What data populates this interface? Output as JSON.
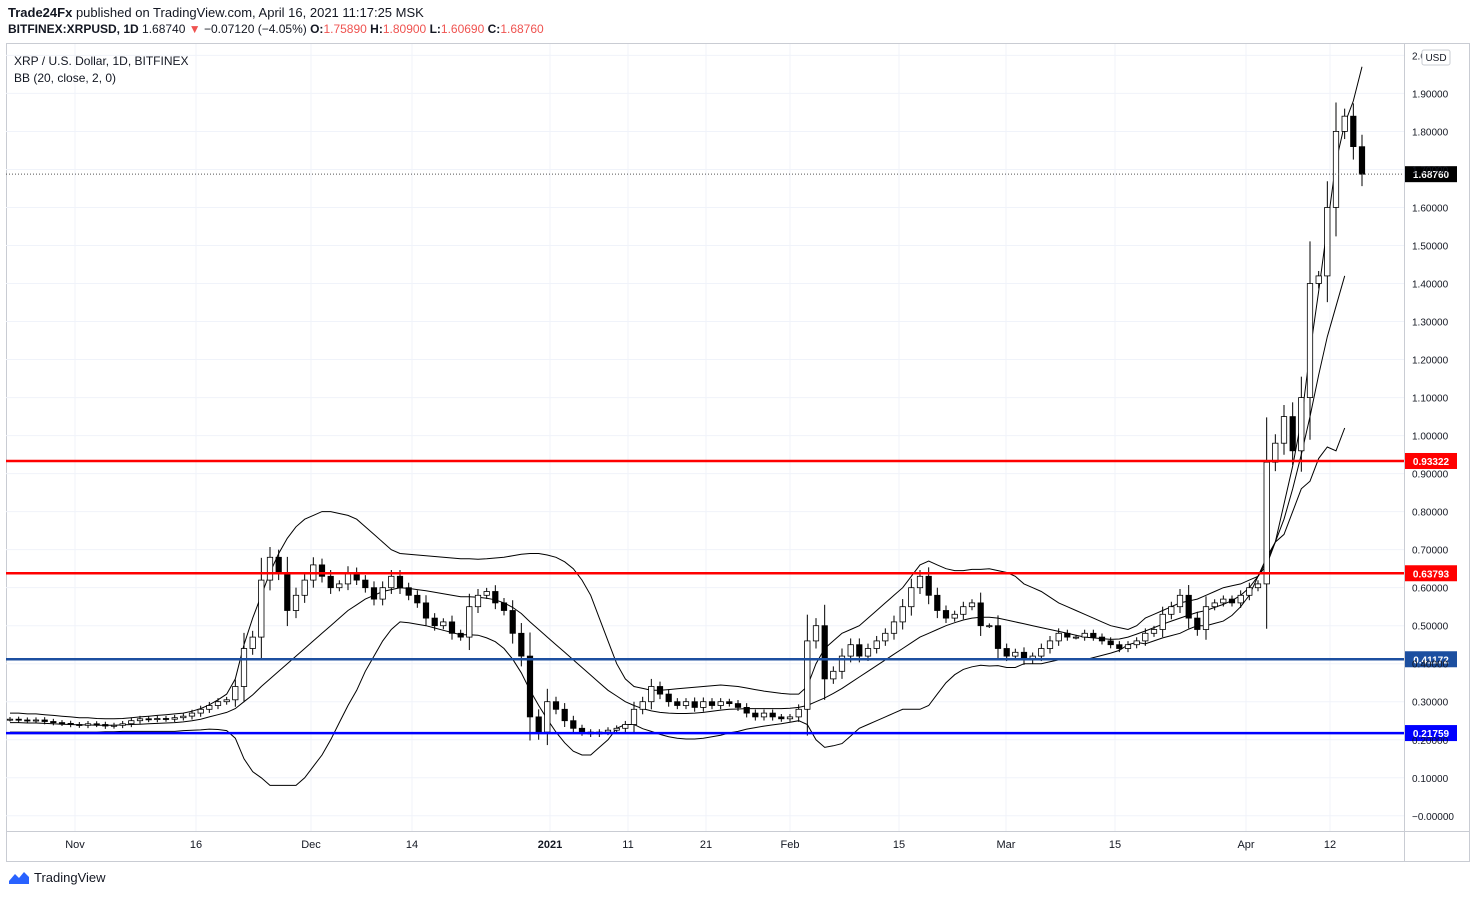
{
  "header": {
    "author": "Trade24Fx",
    "published": "published on TradingView.com, April 16, 2021 11:17:25 MSK",
    "symbol": "BITFINEX:XRPUSD, 1D",
    "last": "1.68740",
    "change": "−0.07120 (−4.05%)",
    "o_label": "O:",
    "o": "1.75890",
    "h_label": "H:",
    "h": "1.80900",
    "l_label": "L:",
    "l": "1.60690",
    "c_label": "C:",
    "c": "1.68760"
  },
  "legend": {
    "title": "XRP / U.S. Dollar, 1D, BITFINEX",
    "indicator": "BB (20, close, 2, 0)"
  },
  "currency_badge": "USD",
  "brand": "TradingView",
  "colors": {
    "red_line": "#ff0000",
    "blue_line_1": "#1c4fa0",
    "blue_line_2": "#0000ff",
    "up": "#ffffff",
    "down": "#000000"
  },
  "chart_data": {
    "type": "candlestick",
    "y_range": [
      -0.04,
      2.03
    ],
    "y_ticks": [
      "2.00000",
      "1.90000",
      "1.80000",
      "1.70000",
      "1.60000",
      "1.50000",
      "1.40000",
      "1.30000",
      "1.20000",
      "1.10000",
      "1.00000",
      "0.90000",
      "0.80000",
      "0.70000",
      "0.60000",
      "0.50000",
      "0.40000",
      "0.30000",
      "0.20000",
      "0.10000",
      "−0.00000"
    ],
    "x_ticks": [
      "Nov",
      "16",
      "Dec",
      "14",
      "2021",
      "11",
      "21",
      "Feb",
      "15",
      "Mar",
      "15",
      "Apr",
      "12"
    ],
    "current_price": "1.68760",
    "levels": [
      {
        "value": 0.93322,
        "label": "0.93322",
        "color": "#ff0000"
      },
      {
        "value": 0.63793,
        "label": "0.63793",
        "color": "#ff0000"
      },
      {
        "value": 0.41172,
        "label": "0.41172",
        "color": "#1c4fa0"
      },
      {
        "value": 0.21759,
        "label": "0.21759",
        "color": "#0000ff"
      }
    ],
    "closes": [
      0.254,
      0.252,
      0.25,
      0.252,
      0.248,
      0.245,
      0.243,
      0.24,
      0.238,
      0.242,
      0.24,
      0.236,
      0.238,
      0.242,
      0.25,
      0.255,
      0.253,
      0.256,
      0.254,
      0.258,
      0.262,
      0.27,
      0.28,
      0.29,
      0.3,
      0.305,
      0.34,
      0.44,
      0.47,
      0.62,
      0.68,
      0.64,
      0.54,
      0.58,
      0.62,
      0.66,
      0.63,
      0.6,
      0.61,
      0.64,
      0.62,
      0.6,
      0.57,
      0.6,
      0.63,
      0.6,
      0.58,
      0.56,
      0.52,
      0.5,
      0.51,
      0.48,
      0.47,
      0.55,
      0.58,
      0.59,
      0.56,
      0.54,
      0.48,
      0.42,
      0.26,
      0.22,
      0.3,
      0.28,
      0.25,
      0.23,
      0.22,
      0.215,
      0.22,
      0.225,
      0.23,
      0.24,
      0.28,
      0.3,
      0.34,
      0.32,
      0.3,
      0.29,
      0.3,
      0.285,
      0.3,
      0.29,
      0.3,
      0.295,
      0.285,
      0.27,
      0.26,
      0.27,
      0.26,
      0.255,
      0.26,
      0.28,
      0.46,
      0.5,
      0.36,
      0.38,
      0.42,
      0.45,
      0.42,
      0.44,
      0.46,
      0.48,
      0.51,
      0.55,
      0.6,
      0.63,
      0.58,
      0.54,
      0.52,
      0.53,
      0.55,
      0.56,
      0.5,
      0.5,
      0.44,
      0.42,
      0.43,
      0.41,
      0.42,
      0.44,
      0.46,
      0.48,
      0.47,
      0.47,
      0.48,
      0.47,
      0.46,
      0.45,
      0.44,
      0.45,
      0.46,
      0.48,
      0.49,
      0.53,
      0.55,
      0.58,
      0.52,
      0.49,
      0.55,
      0.56,
      0.57,
      0.56,
      0.58,
      0.6,
      0.61,
      0.93,
      0.98,
      1.05,
      0.96,
      1.1,
      1.4,
      1.42,
      1.6,
      1.8,
      1.84,
      1.76,
      1.6876
    ],
    "bb_upper": [
      0.27,
      0.27,
      0.268,
      0.268,
      0.266,
      0.264,
      0.262,
      0.26,
      0.258,
      0.258,
      0.256,
      0.255,
      0.255,
      0.256,
      0.258,
      0.26,
      0.262,
      0.264,
      0.266,
      0.268,
      0.27,
      0.275,
      0.282,
      0.292,
      0.305,
      0.32,
      0.36,
      0.45,
      0.52,
      0.58,
      0.64,
      0.69,
      0.73,
      0.76,
      0.78,
      0.79,
      0.8,
      0.8,
      0.795,
      0.79,
      0.78,
      0.76,
      0.74,
      0.72,
      0.7,
      0.69,
      0.688,
      0.686,
      0.684,
      0.682,
      0.68,
      0.678,
      0.676,
      0.676,
      0.675,
      0.676,
      0.678,
      0.68,
      0.684,
      0.688,
      0.69,
      0.69,
      0.686,
      0.68,
      0.668,
      0.65,
      0.62,
      0.58,
      0.52,
      0.46,
      0.4,
      0.36,
      0.34,
      0.335,
      0.33,
      0.33,
      0.332,
      0.334,
      0.336,
      0.338,
      0.34,
      0.342,
      0.344,
      0.342,
      0.34,
      0.336,
      0.332,
      0.328,
      0.325,
      0.322,
      0.32,
      0.32,
      0.34,
      0.4,
      0.44,
      0.46,
      0.48,
      0.49,
      0.5,
      0.52,
      0.54,
      0.56,
      0.58,
      0.6,
      0.63,
      0.66,
      0.67,
      0.66,
      0.65,
      0.645,
      0.645,
      0.648,
      0.648,
      0.65,
      0.645,
      0.64,
      0.63,
      0.61,
      0.6,
      0.59,
      0.575,
      0.56,
      0.55,
      0.54,
      0.53,
      0.52,
      0.51,
      0.5,
      0.495,
      0.49,
      0.5,
      0.52,
      0.53,
      0.54,
      0.55,
      0.56,
      0.565,
      0.57,
      0.58,
      0.59,
      0.6,
      0.605,
      0.61,
      0.62,
      0.63,
      0.66,
      0.72,
      0.82,
      0.92,
      1.04,
      1.22,
      1.38,
      1.55,
      1.72,
      1.82,
      1.88,
      1.97
    ],
    "bb_middle": [
      0.245,
      0.245,
      0.244,
      0.244,
      0.243,
      0.242,
      0.241,
      0.24,
      0.239,
      0.239,
      0.238,
      0.238,
      0.238,
      0.239,
      0.24,
      0.241,
      0.242,
      0.243,
      0.244,
      0.245,
      0.247,
      0.25,
      0.254,
      0.26,
      0.266,
      0.272,
      0.282,
      0.3,
      0.318,
      0.34,
      0.36,
      0.38,
      0.4,
      0.42,
      0.44,
      0.46,
      0.48,
      0.5,
      0.52,
      0.54,
      0.555,
      0.57,
      0.58,
      0.59,
      0.595,
      0.6,
      0.598,
      0.595,
      0.592,
      0.588,
      0.584,
      0.58,
      0.576,
      0.576,
      0.575,
      0.572,
      0.568,
      0.56,
      0.548,
      0.532,
      0.51,
      0.49,
      0.47,
      0.45,
      0.43,
      0.41,
      0.39,
      0.37,
      0.35,
      0.33,
      0.315,
      0.3,
      0.29,
      0.282,
      0.276,
      0.272,
      0.27,
      0.269,
      0.269,
      0.27,
      0.272,
      0.275,
      0.278,
      0.28,
      0.281,
      0.282,
      0.282,
      0.282,
      0.282,
      0.282,
      0.283,
      0.285,
      0.29,
      0.3,
      0.31,
      0.322,
      0.335,
      0.35,
      0.365,
      0.38,
      0.395,
      0.41,
      0.425,
      0.44,
      0.455,
      0.47,
      0.48,
      0.49,
      0.5,
      0.508,
      0.515,
      0.52,
      0.522,
      0.522,
      0.52,
      0.515,
      0.51,
      0.505,
      0.5,
      0.495,
      0.49,
      0.485,
      0.48,
      0.475,
      0.47,
      0.468,
      0.466,
      0.464,
      0.465,
      0.47,
      0.478,
      0.486,
      0.495,
      0.504,
      0.512,
      0.52,
      0.528,
      0.535,
      0.54,
      0.548,
      0.556,
      0.566,
      0.58,
      0.6,
      0.63,
      0.67,
      0.72,
      0.78,
      0.86,
      0.95,
      1.05,
      1.16,
      1.26,
      1.34,
      1.42
    ]
  }
}
